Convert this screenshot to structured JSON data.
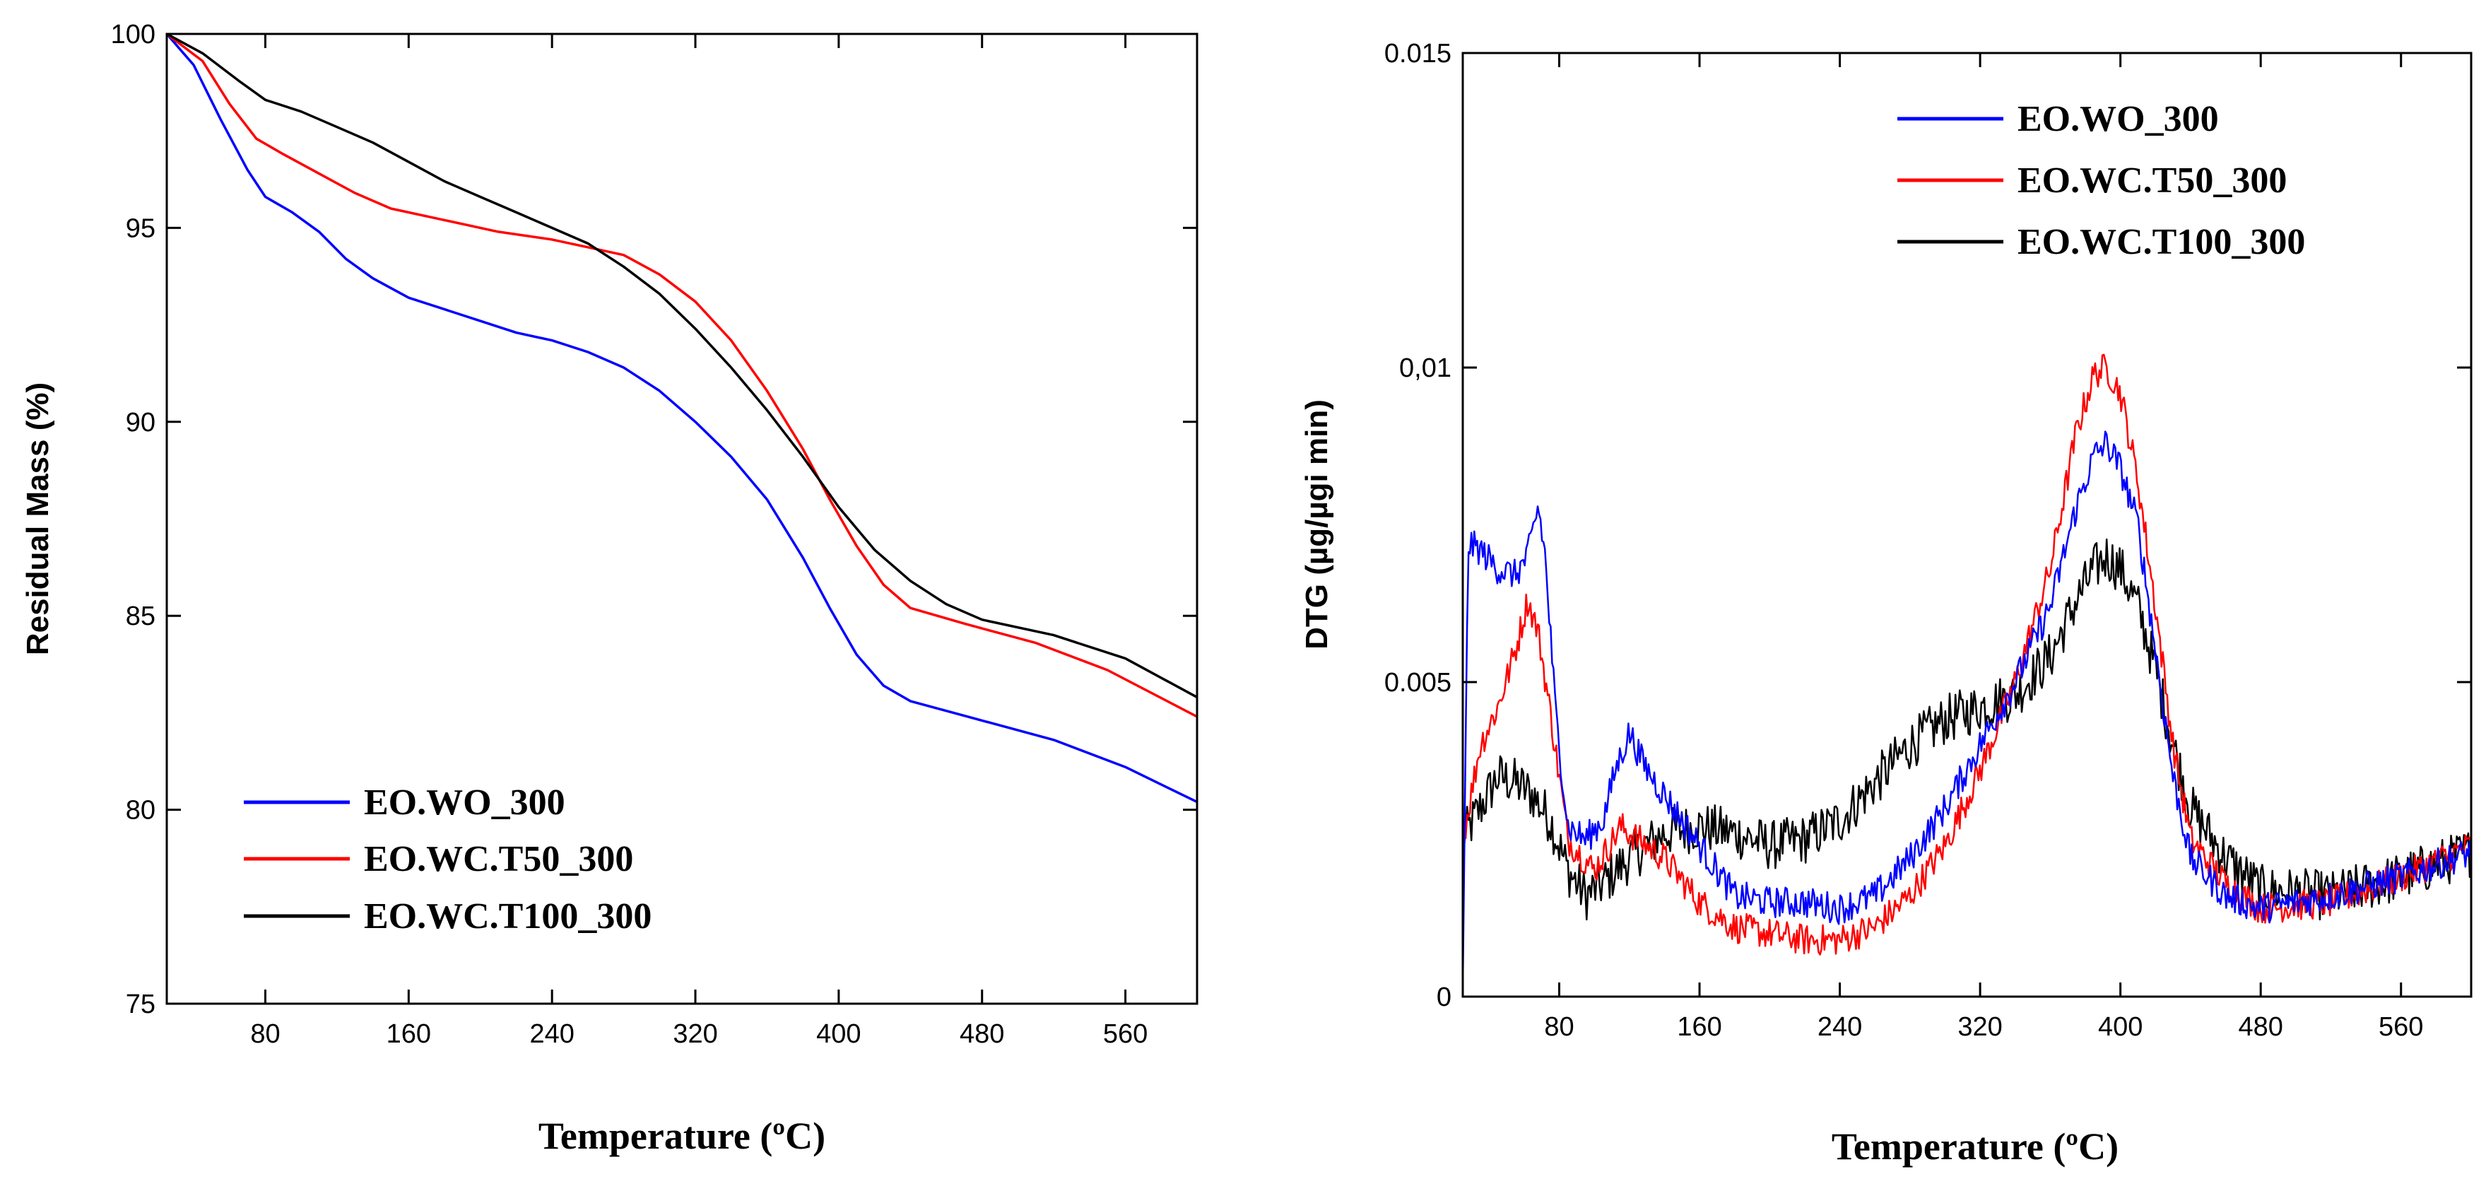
{
  "chart_data": [
    {
      "type": "line",
      "title": "",
      "xlabel": "Temperature (ºC)",
      "ylabel": "Residual Mass (%)",
      "xlim": [
        25,
        600
      ],
      "ylim": [
        75,
        100
      ],
      "x_ticks": [
        80,
        160,
        240,
        320,
        400,
        480,
        560
      ],
      "x_tick_labels": [
        "80",
        "160",
        "240",
        "320",
        "400",
        "480",
        "560"
      ],
      "y_ticks": [
        75,
        80,
        85,
        90,
        95,
        100
      ],
      "y_tick_labels": [
        "75",
        "80",
        "85",
        "90",
        "95",
        "100"
      ],
      "grid": false,
      "legend_position": "bottom-left",
      "series": [
        {
          "name": "EO.WO_300",
          "color": "#0000ff",
          "points": [
            [
              25,
              100
            ],
            [
              40,
              99.2
            ],
            [
              55,
              97.8
            ],
            [
              70,
              96.5
            ],
            [
              80,
              95.8
            ],
            [
              95,
              95.4
            ],
            [
              110,
              94.9
            ],
            [
              125,
              94.2
            ],
            [
              140,
              93.7
            ],
            [
              160,
              93.2
            ],
            [
              180,
              92.9
            ],
            [
              200,
              92.6
            ],
            [
              220,
              92.3
            ],
            [
              240,
              92.1
            ],
            [
              260,
              91.8
            ],
            [
              280,
              91.4
            ],
            [
              300,
              90.8
            ],
            [
              320,
              90.0
            ],
            [
              340,
              89.1
            ],
            [
              360,
              88.0
            ],
            [
              380,
              86.5
            ],
            [
              395,
              85.2
            ],
            [
              410,
              84.0
            ],
            [
              425,
              83.2
            ],
            [
              440,
              82.8
            ],
            [
              480,
              82.3
            ],
            [
              520,
              81.8
            ],
            [
              560,
              81.1
            ],
            [
              600,
              80.2
            ]
          ]
        },
        {
          "name": "EO.WC.T50_300",
          "color": "#ff0000",
          "points": [
            [
              25,
              100
            ],
            [
              45,
              99.3
            ],
            [
              60,
              98.2
            ],
            [
              75,
              97.3
            ],
            [
              90,
              96.9
            ],
            [
              110,
              96.4
            ],
            [
              130,
              95.9
            ],
            [
              150,
              95.5
            ],
            [
              180,
              95.2
            ],
            [
              210,
              94.9
            ],
            [
              240,
              94.7
            ],
            [
              260,
              94.5
            ],
            [
              280,
              94.3
            ],
            [
              300,
              93.8
            ],
            [
              320,
              93.1
            ],
            [
              340,
              92.1
            ],
            [
              360,
              90.8
            ],
            [
              380,
              89.3
            ],
            [
              395,
              88.0
            ],
            [
              410,
              86.8
            ],
            [
              425,
              85.8
            ],
            [
              440,
              85.2
            ],
            [
              470,
              84.8
            ],
            [
              510,
              84.3
            ],
            [
              550,
              83.6
            ],
            [
              600,
              82.4
            ]
          ]
        },
        {
          "name": "EO.WC.T100_300",
          "color": "#000000",
          "points": [
            [
              25,
              100
            ],
            [
              45,
              99.5
            ],
            [
              65,
              98.8
            ],
            [
              80,
              98.3
            ],
            [
              100,
              98.0
            ],
            [
              120,
              97.6
            ],
            [
              140,
              97.2
            ],
            [
              160,
              96.7
            ],
            [
              180,
              96.2
            ],
            [
              200,
              95.8
            ],
            [
              220,
              95.4
            ],
            [
              240,
              95.0
            ],
            [
              260,
              94.6
            ],
            [
              280,
              94.0
            ],
            [
              300,
              93.3
            ],
            [
              320,
              92.4
            ],
            [
              340,
              91.4
            ],
            [
              360,
              90.3
            ],
            [
              380,
              89.1
            ],
            [
              400,
              87.8
            ],
            [
              420,
              86.7
            ],
            [
              440,
              85.9
            ],
            [
              460,
              85.3
            ],
            [
              480,
              84.9
            ],
            [
              520,
              84.5
            ],
            [
              560,
              83.9
            ],
            [
              600,
              82.9
            ]
          ]
        }
      ]
    },
    {
      "type": "line",
      "title": "",
      "xlabel": "Temperature (ºC)",
      "ylabel": "DTG (µg/µgi min)",
      "xlim": [
        25,
        600
      ],
      "ylim": [
        0,
        0.015
      ],
      "x_ticks": [
        80,
        160,
        240,
        320,
        400,
        480,
        560
      ],
      "x_tick_labels": [
        "80",
        "160",
        "240",
        "320",
        "400",
        "480",
        "560"
      ],
      "y_ticks": [
        0,
        0.005,
        0.01,
        0.015
      ],
      "y_tick_labels": [
        "0",
        "0.005",
        "0,01",
        "0.015"
      ],
      "grid": false,
      "legend_position": "top-right",
      "series": [
        {
          "name": "EO.WO_300",
          "color": "#0000ff",
          "noise": 0.00025,
          "points": [
            [
              25,
              0
            ],
            [
              28,
              0.0072
            ],
            [
              35,
              0.0071
            ],
            [
              45,
              0.0068
            ],
            [
              55,
              0.0067
            ],
            [
              62,
              0.007
            ],
            [
              68,
              0.0078
            ],
            [
              72,
              0.007
            ],
            [
              78,
              0.0045
            ],
            [
              85,
              0.0027
            ],
            [
              95,
              0.0025
            ],
            [
              105,
              0.0028
            ],
            [
              112,
              0.0036
            ],
            [
              120,
              0.0042
            ],
            [
              128,
              0.0037
            ],
            [
              140,
              0.0032
            ],
            [
              160,
              0.0024
            ],
            [
              180,
              0.0016
            ],
            [
              200,
              0.0015
            ],
            [
              220,
              0.0015
            ],
            [
              240,
              0.0014
            ],
            [
              260,
              0.0016
            ],
            [
              280,
              0.0022
            ],
            [
              300,
              0.003
            ],
            [
              320,
              0.004
            ],
            [
              340,
              0.005
            ],
            [
              360,
              0.0062
            ],
            [
              375,
              0.0078
            ],
            [
              385,
              0.0086
            ],
            [
              392,
              0.0088
            ],
            [
              400,
              0.0084
            ],
            [
              410,
              0.0075
            ],
            [
              420,
              0.0055
            ],
            [
              430,
              0.0035
            ],
            [
              440,
              0.0022
            ],
            [
              460,
              0.0016
            ],
            [
              480,
              0.0014
            ],
            [
              520,
              0.0016
            ],
            [
              560,
              0.0019
            ],
            [
              600,
              0.0023
            ]
          ]
        },
        {
          "name": "EO.WC.T50_300",
          "color": "#ff0000",
          "noise": 0.00025,
          "points": [
            [
              25,
              0.0025
            ],
            [
              35,
              0.004
            ],
            [
              45,
              0.0046
            ],
            [
              55,
              0.0055
            ],
            [
              62,
              0.0063
            ],
            [
              68,
              0.0058
            ],
            [
              75,
              0.0045
            ],
            [
              85,
              0.0025
            ],
            [
              100,
              0.002
            ],
            [
              115,
              0.0027
            ],
            [
              125,
              0.0025
            ],
            [
              140,
              0.0022
            ],
            [
              160,
              0.0015
            ],
            [
              180,
              0.0011
            ],
            [
              200,
              0.001
            ],
            [
              220,
              0.0009
            ],
            [
              240,
              0.0009
            ],
            [
              260,
              0.0011
            ],
            [
              280,
              0.0016
            ],
            [
              300,
              0.0024
            ],
            [
              320,
              0.0036
            ],
            [
              340,
              0.005
            ],
            [
              360,
              0.0068
            ],
            [
              375,
              0.009
            ],
            [
              385,
              0.0099
            ],
            [
              392,
              0.01
            ],
            [
              400,
              0.0096
            ],
            [
              410,
              0.0082
            ],
            [
              420,
              0.0062
            ],
            [
              430,
              0.004
            ],
            [
              440,
              0.0025
            ],
            [
              460,
              0.0018
            ],
            [
              480,
              0.0014
            ],
            [
              520,
              0.0015
            ],
            [
              560,
              0.0019
            ],
            [
              600,
              0.0024
            ]
          ]
        },
        {
          "name": "EO.WC.T100_300",
          "color": "#000000",
          "noise": 0.0004,
          "points": [
            [
              25,
              0.0025
            ],
            [
              35,
              0.003
            ],
            [
              45,
              0.0035
            ],
            [
              55,
              0.0034
            ],
            [
              65,
              0.0032
            ],
            [
              75,
              0.0028
            ],
            [
              85,
              0.002
            ],
            [
              95,
              0.0016
            ],
            [
              105,
              0.0018
            ],
            [
              120,
              0.0022
            ],
            [
              140,
              0.0026
            ],
            [
              160,
              0.0027
            ],
            [
              180,
              0.0026
            ],
            [
              200,
              0.0024
            ],
            [
              220,
              0.0025
            ],
            [
              240,
              0.0028
            ],
            [
              260,
              0.0034
            ],
            [
              280,
              0.004
            ],
            [
              300,
              0.0044
            ],
            [
              320,
              0.0046
            ],
            [
              340,
              0.0048
            ],
            [
              360,
              0.0054
            ],
            [
              375,
              0.0063
            ],
            [
              385,
              0.0068
            ],
            [
              392,
              0.007
            ],
            [
              400,
              0.0068
            ],
            [
              410,
              0.0062
            ],
            [
              420,
              0.0052
            ],
            [
              430,
              0.004
            ],
            [
              440,
              0.003
            ],
            [
              460,
              0.0022
            ],
            [
              480,
              0.0017
            ],
            [
              520,
              0.0016
            ],
            [
              560,
              0.0019
            ],
            [
              600,
              0.0023
            ]
          ]
        }
      ]
    }
  ]
}
